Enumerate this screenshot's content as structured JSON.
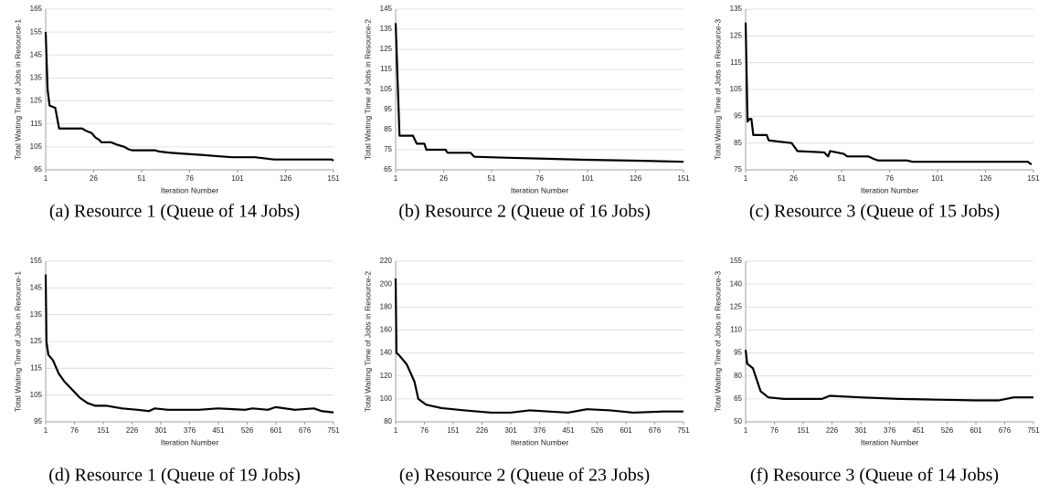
{
  "chart_data": [
    {
      "type": "line",
      "caption": "(a) Resource 1 (Queue of 14 Jobs)",
      "x_label": "Iteration Number",
      "y_label": "Total Waiting Time of Jobs in Resource-1",
      "color": "#000000",
      "grid": true,
      "xlim": [
        1,
        151
      ],
      "xticks": [
        1,
        26,
        51,
        76,
        101,
        126,
        151
      ],
      "ylim": [
        95,
        165
      ],
      "yticks": [
        95,
        105,
        115,
        125,
        135,
        145,
        155,
        165
      ],
      "x": [
        1,
        2,
        3,
        6,
        8,
        20,
        22,
        25,
        27,
        29,
        30,
        35,
        38,
        42,
        44,
        46,
        58,
        60,
        65,
        73,
        82,
        90,
        98,
        110,
        115,
        120,
        150,
        151
      ],
      "values": [
        155,
        130,
        123,
        122,
        113,
        113,
        112,
        111,
        109,
        108,
        107,
        107,
        106,
        105,
        104,
        103.5,
        103.5,
        103,
        102.5,
        102,
        101.5,
        101,
        100.5,
        100.5,
        100,
        99.5,
        99.5,
        99
      ]
    },
    {
      "type": "line",
      "caption": "(b) Resource 2 (Queue of 16 Jobs)",
      "x_label": "Iteration Number",
      "y_label": "Total Waiting Time of Jobs in Resource-2",
      "color": "#000000",
      "grid": true,
      "xlim": [
        1,
        151
      ],
      "xticks": [
        1,
        26,
        51,
        76,
        101,
        126,
        151
      ],
      "ylim": [
        65,
        145
      ],
      "yticks": [
        65,
        75,
        85,
        95,
        105,
        115,
        125,
        135,
        145
      ],
      "x": [
        1,
        2,
        3,
        10,
        12,
        16,
        17,
        27,
        28,
        40,
        42,
        60,
        80,
        100,
        130,
        151
      ],
      "values": [
        138,
        110,
        82,
        82,
        78,
        78,
        75,
        75,
        73.5,
        73.5,
        71.5,
        71,
        70.5,
        70,
        69.5,
        69
      ]
    },
    {
      "type": "line",
      "caption": "(c) Resource 3 (Queue of 15 Jobs)",
      "x_label": "Iteration Number",
      "y_label": "Total Waiting Time of Jobs in Resource-3",
      "color": "#000000",
      "grid": true,
      "xlim": [
        1,
        151
      ],
      "xticks": [
        1,
        26,
        51,
        76,
        101,
        126,
        151
      ],
      "ylim": [
        75,
        135
      ],
      "yticks": [
        75,
        85,
        95,
        105,
        115,
        125,
        135
      ],
      "x": [
        1,
        2,
        3,
        4,
        5,
        12,
        13,
        25,
        28,
        42,
        44,
        45,
        52,
        54,
        65,
        68,
        70,
        85,
        88,
        148,
        150
      ],
      "values": [
        130,
        93,
        94,
        94,
        88,
        88,
        86,
        85,
        82,
        81.5,
        80,
        82,
        81,
        80,
        80,
        79,
        78.5,
        78.5,
        78,
        78,
        77
      ]
    },
    {
      "type": "line",
      "caption": "(d) Resource 1 (Queue of 19 Jobs)",
      "x_label": "Iteration Number",
      "y_label": "Total Waiting Time of Jobs in Resource-1",
      "color": "#000000",
      "grid": true,
      "xlim": [
        1,
        751
      ],
      "xticks": [
        1,
        76,
        151,
        226,
        301,
        376,
        451,
        526,
        601,
        676,
        751
      ],
      "ylim": [
        95,
        155
      ],
      "yticks": [
        95,
        105,
        115,
        125,
        135,
        145,
        155
      ],
      "x": [
        1,
        3,
        8,
        20,
        35,
        50,
        70,
        90,
        110,
        130,
        160,
        200,
        240,
        270,
        285,
        320,
        400,
        450,
        520,
        540,
        580,
        600,
        650,
        700,
        720,
        751
      ],
      "values": [
        150,
        125,
        120,
        118,
        113,
        110,
        107,
        104,
        102,
        101,
        101,
        100,
        99.5,
        99,
        100,
        99.5,
        99.5,
        100,
        99.5,
        100,
        99.5,
        100.5,
        99.5,
        100,
        99,
        98.5
      ]
    },
    {
      "type": "line",
      "caption": "(e) Resource 2 (Queue of 23 Jobs)",
      "x_label": "Iteration Number",
      "y_label": "Total Waiting Time of Jobs in Resource-2",
      "color": "#000000",
      "grid": true,
      "xlim": [
        1,
        751
      ],
      "xticks": [
        1,
        76,
        151,
        226,
        301,
        376,
        451,
        526,
        601,
        676,
        751
      ],
      "ylim": [
        80,
        220
      ],
      "yticks": [
        80,
        100,
        120,
        140,
        160,
        180,
        200,
        220
      ],
      "x": [
        1,
        3,
        10,
        30,
        50,
        60,
        80,
        120,
        180,
        250,
        300,
        350,
        400,
        450,
        500,
        560,
        620,
        700,
        751
      ],
      "values": [
        205,
        140,
        138,
        130,
        115,
        100,
        95,
        92,
        90,
        88,
        88,
        90,
        89,
        88,
        91,
        90,
        88,
        89,
        89
      ]
    },
    {
      "type": "line",
      "caption": "(f) Resource 3 (Queue of 14 Jobs)",
      "x_label": "Iteration Number",
      "y_label": "Total Waiting Time of Jobs in Resource-3",
      "color": "#000000",
      "grid": true,
      "xlim": [
        1,
        751
      ],
      "xticks": [
        1,
        76,
        151,
        226,
        301,
        376,
        451,
        526,
        601,
        676,
        751
      ],
      "ylim": [
        50,
        155
      ],
      "yticks": [
        50,
        65,
        80,
        95,
        110,
        125,
        140,
        155
      ],
      "x": [
        1,
        5,
        20,
        40,
        60,
        100,
        200,
        220,
        300,
        400,
        500,
        600,
        660,
        700,
        751
      ],
      "values": [
        97,
        88,
        85,
        70,
        66,
        65,
        65,
        67,
        66,
        65,
        64.5,
        64,
        64,
        66,
        66
      ]
    }
  ]
}
